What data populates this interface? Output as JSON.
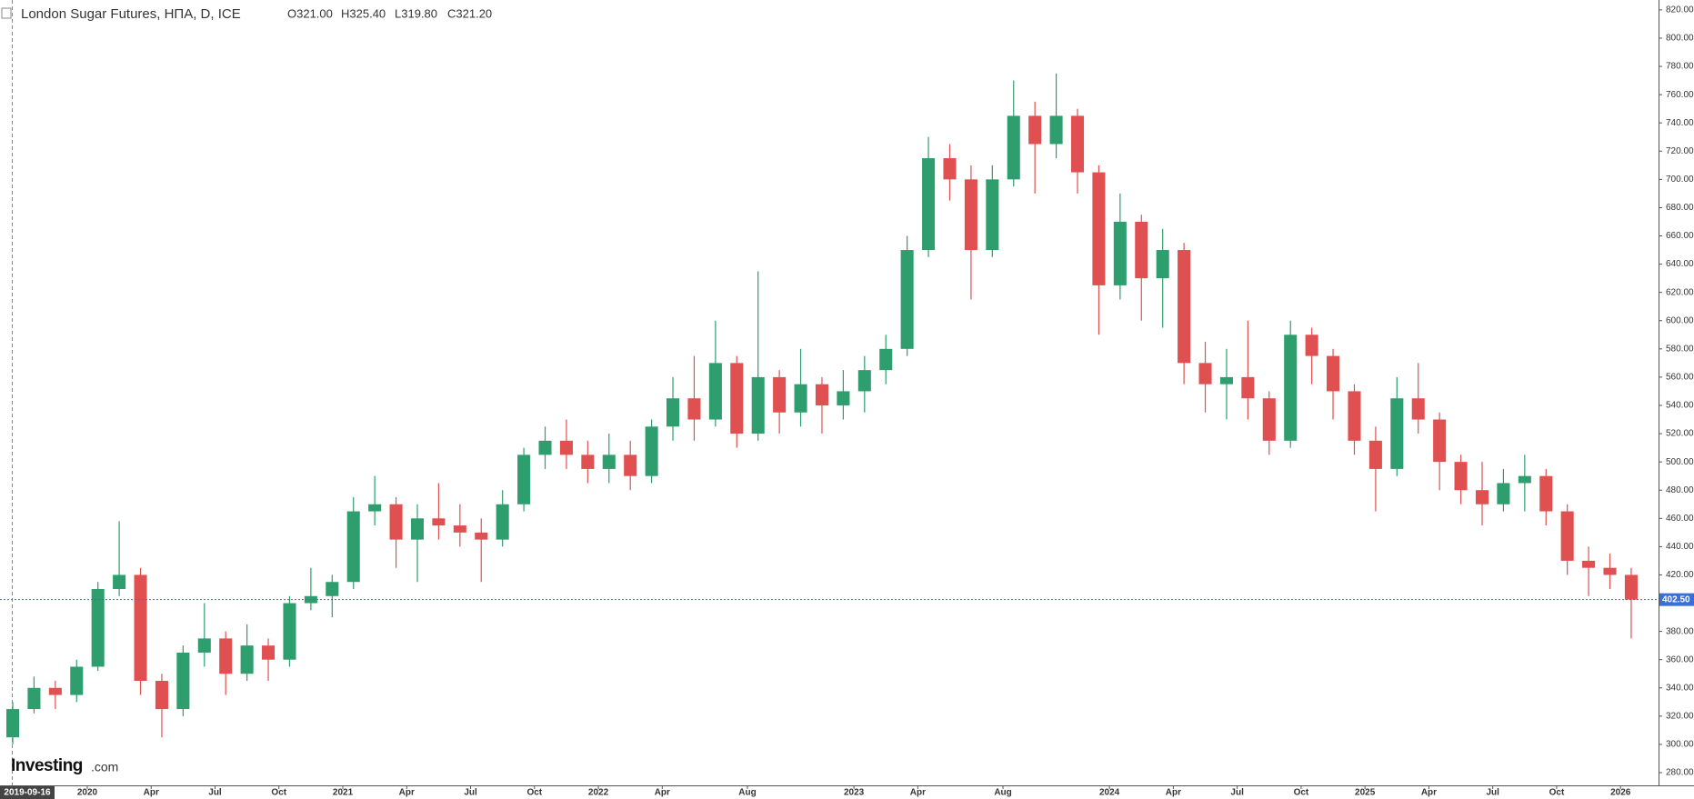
{
  "chart_data": {
    "type": "candlestick",
    "title": "London Sugar Futures, НПА, D, ICE",
    "ohlc_header": {
      "open": "O321.00",
      "high": "H325.40",
      "low": "L319.80",
      "close": "C321.20"
    },
    "crosshair_date": "2019-09-16",
    "watermark": {
      "brand": "Investing",
      "suffix": ".com"
    },
    "categories": [
      null,
      null,
      null,
      null,
      "2020",
      null,
      null,
      "Apr",
      null,
      null,
      "Jul",
      null,
      null,
      "Oct",
      null,
      null,
      "2021",
      null,
      null,
      "Apr",
      null,
      null,
      "Jul",
      null,
      null,
      "Oct",
      null,
      null,
      "2022",
      null,
      null,
      "Apr",
      null,
      null,
      null,
      "Aug",
      null,
      null,
      null,
      null,
      "2023",
      null,
      null,
      "Apr",
      null,
      null,
      null,
      "Aug",
      null,
      null,
      null,
      null,
      "2024",
      null,
      null,
      "Apr",
      null,
      null,
      "Jul",
      null,
      null,
      "Oct",
      null,
      null,
      "2025",
      null,
      null,
      "Apr",
      null,
      null,
      "Jul",
      null,
      null,
      "Oct",
      null,
      null,
      "2026"
    ],
    "open": [
      305,
      325,
      340,
      335,
      355,
      410,
      420,
      345,
      325,
      365,
      375,
      350,
      370,
      360,
      400,
      405,
      415,
      465,
      470,
      445,
      460,
      455,
      450,
      445,
      470,
      505,
      515,
      505,
      495,
      505,
      490,
      525,
      545,
      530,
      570,
      520,
      560,
      535,
      555,
      540,
      550,
      565,
      580,
      650,
      715,
      700,
      650,
      700,
      745,
      725,
      745,
      705,
      625,
      670,
      630,
      650,
      570,
      555,
      560,
      545,
      515,
      590,
      575,
      550,
      515,
      495,
      545,
      530,
      500,
      480,
      470,
      485,
      490,
      465,
      430,
      425,
      420
    ],
    "high": [
      330,
      348,
      345,
      360,
      415,
      458,
      425,
      350,
      370,
      400,
      380,
      385,
      375,
      405,
      425,
      420,
      475,
      490,
      475,
      470,
      485,
      470,
      460,
      480,
      510,
      525,
      530,
      515,
      520,
      515,
      530,
      560,
      575,
      600,
      575,
      635,
      565,
      580,
      560,
      565,
      575,
      590,
      660,
      730,
      725,
      710,
      710,
      770,
      755,
      775,
      750,
      710,
      690,
      675,
      665,
      655,
      585,
      580,
      600,
      550,
      600,
      595,
      580,
      555,
      525,
      560,
      570,
      535,
      505,
      500,
      495,
      505,
      495,
      470,
      440,
      435,
      425
    ],
    "low": [
      300,
      322,
      325,
      330,
      352,
      405,
      335,
      305,
      320,
      355,
      335,
      345,
      345,
      355,
      395,
      390,
      410,
      455,
      425,
      415,
      445,
      440,
      415,
      440,
      465,
      495,
      495,
      485,
      485,
      480,
      485,
      515,
      515,
      525,
      510,
      515,
      520,
      525,
      520,
      530,
      535,
      555,
      575,
      645,
      685,
      615,
      645,
      695,
      690,
      715,
      690,
      590,
      615,
      600,
      595,
      555,
      535,
      530,
      530,
      505,
      510,
      555,
      530,
      505,
      465,
      490,
      520,
      480,
      470,
      455,
      465,
      465,
      455,
      420,
      405,
      410,
      375
    ],
    "close": [
      325,
      340,
      335,
      355,
      410,
      420,
      345,
      325,
      365,
      375,
      350,
      370,
      360,
      400,
      405,
      415,
      465,
      470,
      445,
      460,
      455,
      450,
      445,
      470,
      505,
      515,
      505,
      495,
      505,
      490,
      525,
      545,
      530,
      570,
      520,
      560,
      535,
      555,
      540,
      550,
      565,
      580,
      650,
      715,
      700,
      650,
      700,
      745,
      725,
      745,
      705,
      625,
      670,
      630,
      650,
      570,
      555,
      560,
      545,
      515,
      590,
      575,
      550,
      515,
      495,
      545,
      530,
      500,
      480,
      470,
      485,
      490,
      465,
      430,
      425,
      420,
      402.5
    ],
    "up_color": "#2e9e6e",
    "down_color": "#e05050",
    "last_price": {
      "value": 402.5,
      "label": "402.50"
    },
    "ylim": [
      271,
      827
    ],
    "yticks": [
      {
        "value": 280,
        "label": "280.00"
      },
      {
        "value": 300,
        "label": "300.00"
      },
      {
        "value": 320,
        "label": "320.00"
      },
      {
        "value": 340,
        "label": "340.00"
      },
      {
        "value": 360,
        "label": "360.00"
      },
      {
        "value": 380,
        "label": "380.00"
      },
      {
        "value": 400,
        "label": "400.00"
      },
      {
        "value": 420,
        "label": "420.00"
      },
      {
        "value": 440,
        "label": "440.00"
      },
      {
        "value": 460,
        "label": "460.00"
      },
      {
        "value": 480,
        "label": "480.00"
      },
      {
        "value": 500,
        "label": "500.00"
      },
      {
        "value": 520,
        "label": "520.00"
      },
      {
        "value": 540,
        "label": "540.00"
      },
      {
        "value": 560,
        "label": "560.00"
      },
      {
        "value": 580,
        "label": "580.00"
      },
      {
        "value": 600,
        "label": "600.00"
      },
      {
        "value": 620,
        "label": "620.00"
      },
      {
        "value": 640,
        "label": "640.00"
      },
      {
        "value": 660,
        "label": "660.00"
      },
      {
        "value": 680,
        "label": "680.00"
      },
      {
        "value": 700,
        "label": "700.00"
      },
      {
        "value": 720,
        "label": "720.00"
      },
      {
        "value": 740,
        "label": "740.00"
      },
      {
        "value": 760,
        "label": "760.00"
      },
      {
        "value": 780,
        "label": "780.00"
      },
      {
        "value": 800,
        "label": "800.00"
      },
      {
        "value": 820,
        "label": "820.00"
      }
    ],
    "grid": false
  }
}
